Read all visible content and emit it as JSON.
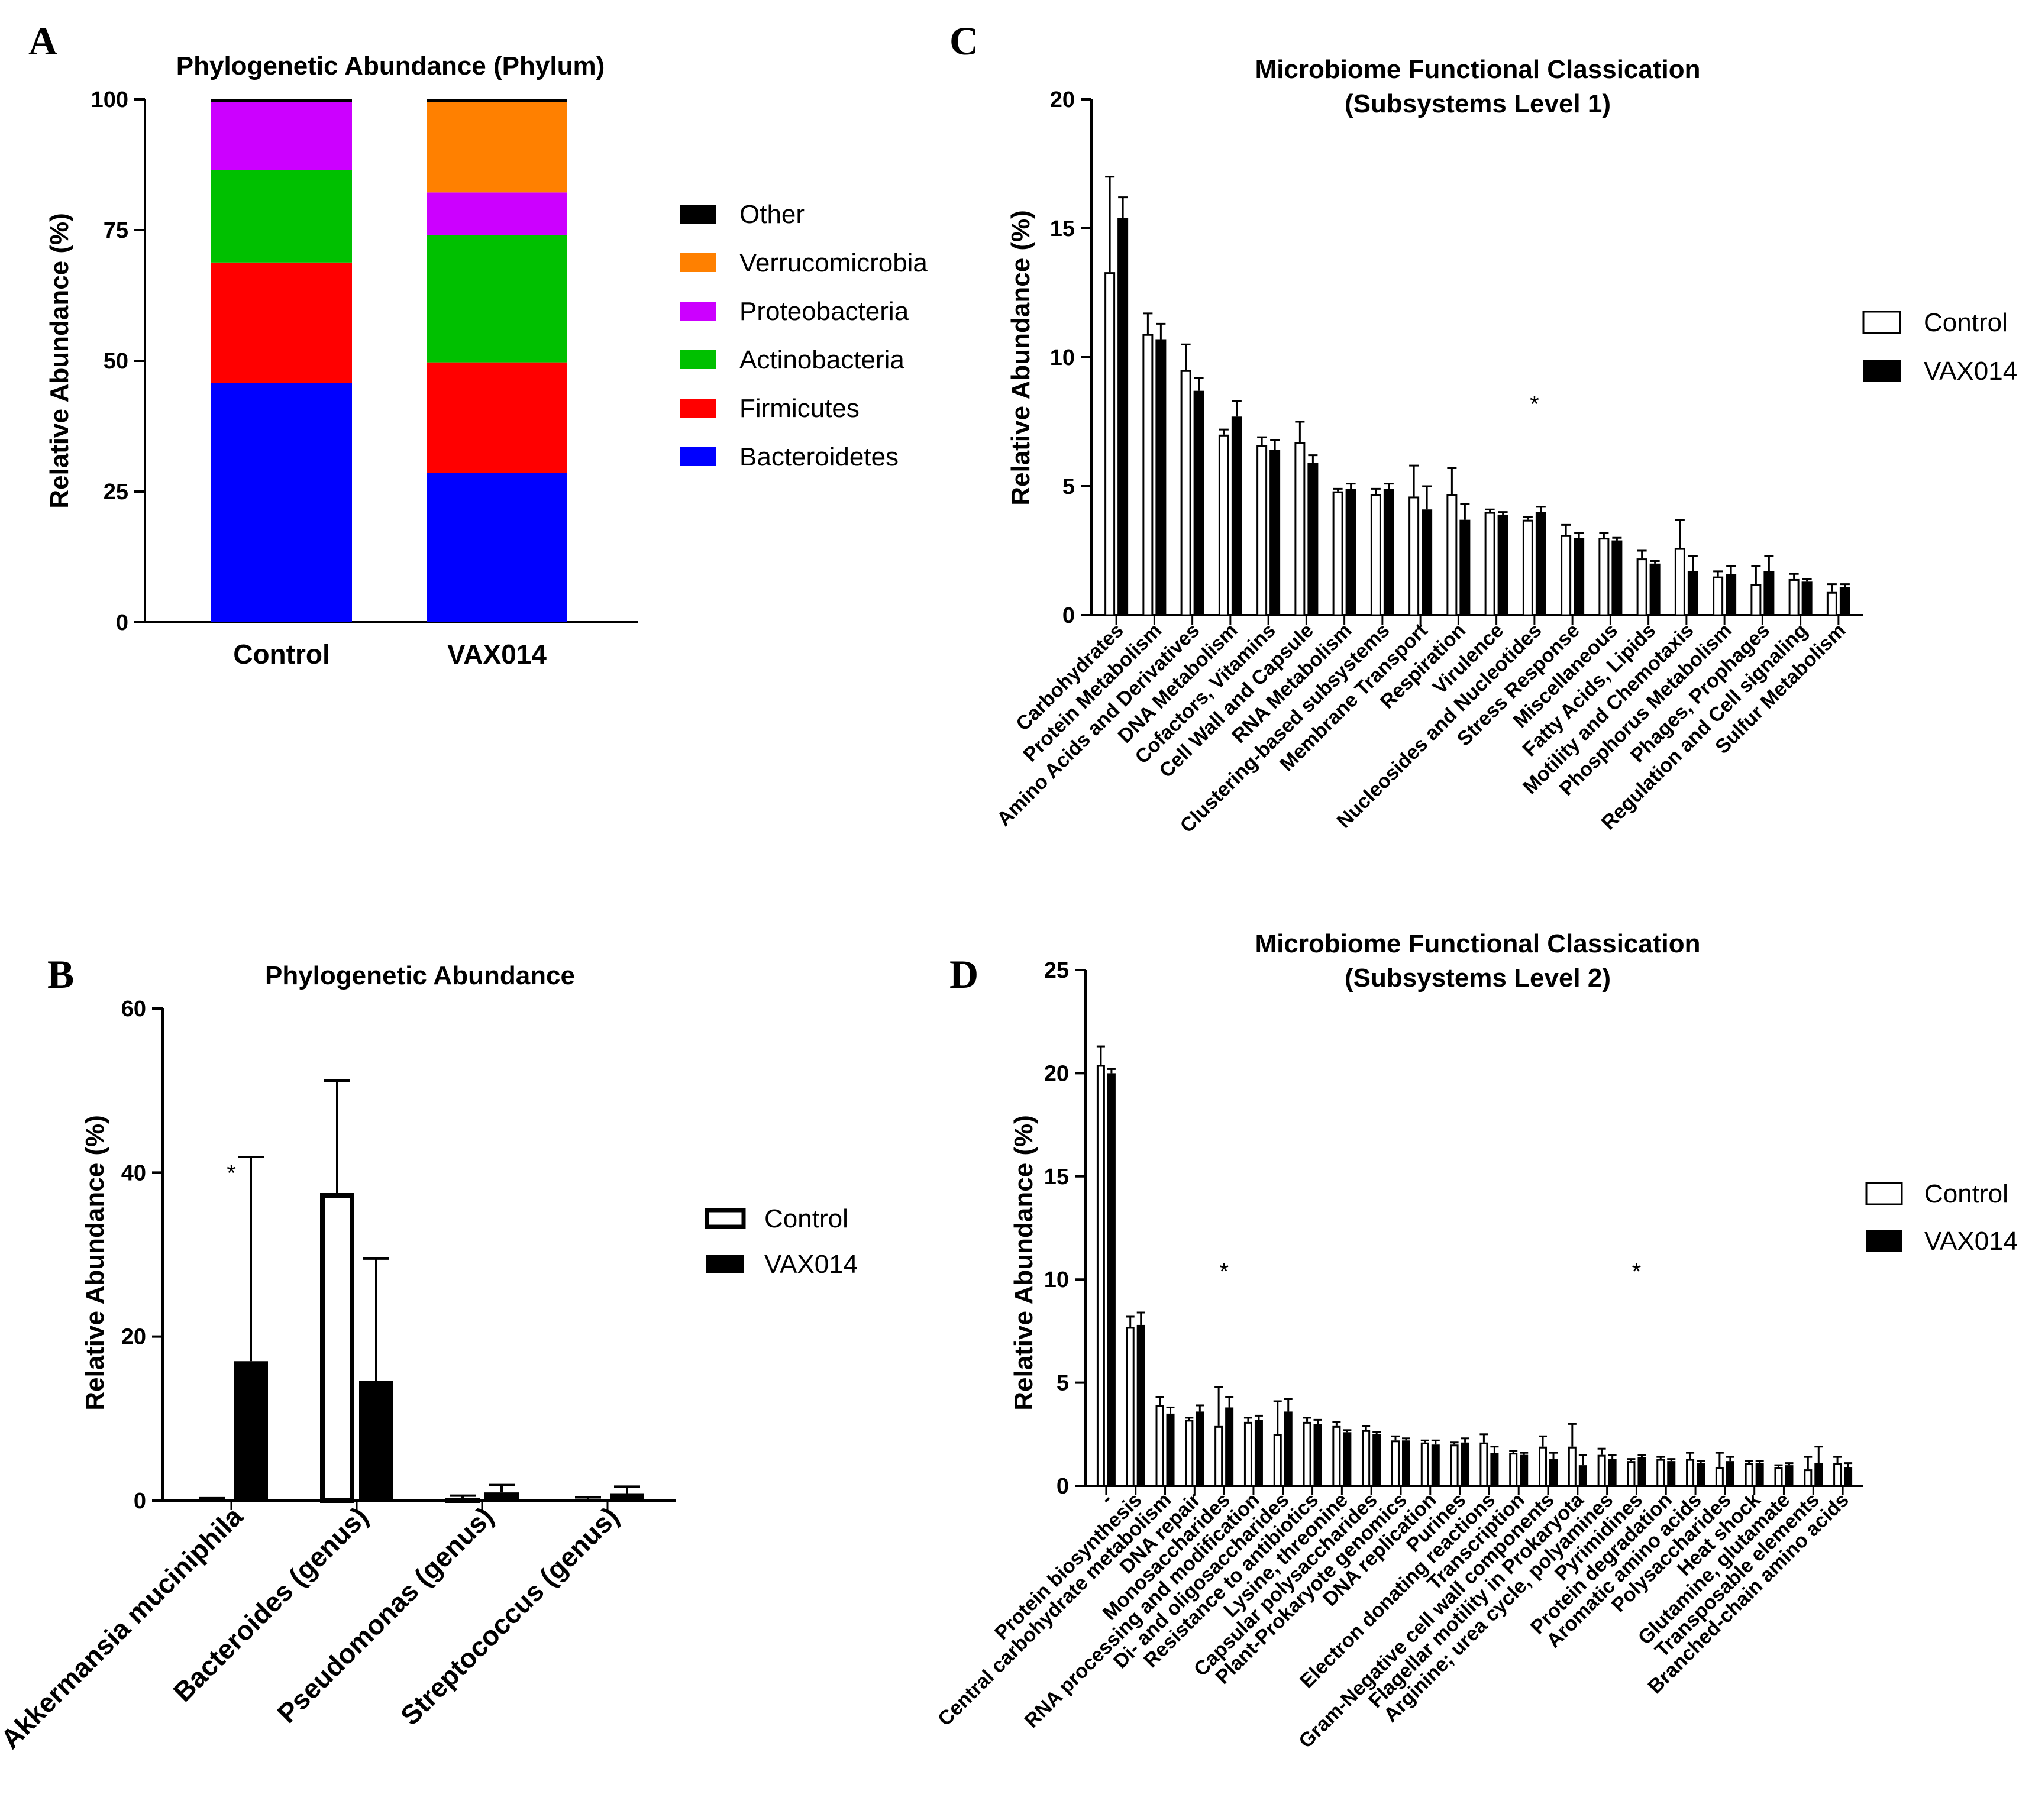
{
  "panels": {
    "A": {
      "letter": "A",
      "chart_data": {
        "type": "bar",
        "stacked": true,
        "title": "Phylogenetic Abundance (Phylum)",
        "ylabel": "Relative Abundance (%)",
        "ylim": [
          0,
          100
        ],
        "yticks": [
          0,
          25,
          50,
          75,
          100
        ],
        "categories": [
          "Control",
          "VAX014"
        ],
        "legend_position": "right",
        "series": [
          {
            "name": "Bacteroidetes",
            "color": "#0000ff",
            "values": [
              45.8,
              28.6
            ]
          },
          {
            "name": "Firmicutes",
            "color": "#ff0000",
            "values": [
              23.0,
              21.1
            ]
          },
          {
            "name": "Actinobacteria",
            "color": "#00c000",
            "values": [
              17.7,
              24.3
            ]
          },
          {
            "name": "Proteobacteria",
            "color": "#cc00ff",
            "values": [
              13.0,
              8.2
            ]
          },
          {
            "name": "Verrucomicrobia",
            "color": "#ff8000",
            "values": [
              0.0,
              17.3
            ]
          },
          {
            "name": "Other",
            "color": "#000000",
            "values": [
              0.5,
              0.5
            ]
          }
        ]
      }
    },
    "B": {
      "letter": "B",
      "chart_data": {
        "type": "bar",
        "title": "Phylogenetic Abundance",
        "ylabel": "Relative Abundance (%)",
        "ylim": [
          0,
          60
        ],
        "yticks": [
          0,
          20,
          40,
          60
        ],
        "categories": [
          "Akkermansia muciniphila",
          "Bacteroides (genus)",
          "Pseudomonas (genus)",
          "Streptococcus (genus)"
        ],
        "legend_position": "right",
        "series": [
          {
            "name": "Control",
            "values": [
              0.2,
              37.5,
              0.3,
              0.2
            ],
            "errors": [
              0.1,
              13.7,
              0.3,
              0.2
            ]
          },
          {
            "name": "VAX014",
            "values": [
              17.0,
              14.6,
              1.0,
              0.9
            ],
            "errors": [
              24.9,
              14.9,
              0.9,
              0.8
            ]
          }
        ],
        "annotations": [
          {
            "category": "Akkermansia muciniphila",
            "text": "*",
            "y": 40
          }
        ]
      }
    },
    "C": {
      "letter": "C",
      "chart_data": {
        "type": "bar",
        "title": "Microbiome Functional Classication",
        "subtitle": "(Subsystems Level 1)",
        "ylabel": "Relative Abundance (%)",
        "ylim": [
          0,
          20
        ],
        "yticks": [
          0,
          5,
          10,
          15,
          20
        ],
        "categories": [
          "Carbohydrates",
          "Protein Metabolism",
          "Amino Acids and Derivatives",
          "DNA Metabolism",
          "Cofactors, Vitamins",
          "Cell Wall and Capsule",
          "RNA Metabolism",
          "Clustering-based subsystems",
          "Membrane Transport",
          "Respiration",
          "Virulence",
          "Nucleosides and Nucleotides",
          "Stress Response",
          "Miscellaneous",
          "Fatty Acids, Lipids",
          "Motility and Chemotaxis",
          "Phosphorus Metabolism",
          "Phages, Prophages",
          "Regulation and Cell signaling",
          "Sulfur Metabolism"
        ],
        "legend_position": "right",
        "series": [
          {
            "name": "Control",
            "values": [
              13.3,
              10.9,
              9.5,
              7.0,
              6.6,
              6.7,
              4.8,
              4.7,
              4.6,
              4.7,
              4.0,
              3.7,
              3.1,
              3.0,
              2.2,
              2.6,
              1.5,
              1.2,
              1.4,
              0.9
            ],
            "errors": [
              3.7,
              0.8,
              1.0,
              0.2,
              0.3,
              0.8,
              0.1,
              0.2,
              1.2,
              1.0,
              0.1,
              0.1,
              0.4,
              0.2,
              0.3,
              1.1,
              0.2,
              0.7,
              0.2,
              0.3
            ]
          },
          {
            "name": "VAX014",
            "values": [
              15.4,
              10.7,
              8.7,
              7.7,
              6.4,
              5.9,
              4.9,
              4.9,
              4.1,
              3.7,
              3.9,
              4.0,
              3.0,
              2.9,
              2.0,
              1.7,
              1.6,
              1.7,
              1.3,
              1.1
            ],
            "errors": [
              0.8,
              0.6,
              0.5,
              0.6,
              0.4,
              0.3,
              0.2,
              0.2,
              0.9,
              0.6,
              0.1,
              0.2,
              0.2,
              0.1,
              0.1,
              0.6,
              0.3,
              0.6,
              0.1,
              0.1
            ]
          }
        ],
        "annotations": [
          {
            "category": "Nucleosides and Nucleotides",
            "text": "*",
            "y": 8.2
          }
        ]
      }
    },
    "D": {
      "letter": "D",
      "chart_data": {
        "type": "bar",
        "title": "Microbiome Functional Classication",
        "subtitle": "(Subsystems Level 2)",
        "ylabel": "Relative Abundance (%)",
        "ylim": [
          0,
          25
        ],
        "yticks": [
          0,
          5,
          10,
          15,
          20,
          25
        ],
        "categories": [
          "-",
          "Protein biosynthesis",
          "Central carbohydrate metabolism",
          "DNA repair",
          "Monosaccharides",
          "RNA processing and modification",
          "Di- and oligosaccharides",
          "Resistance to antibiotics",
          "Lysine, threonine",
          "Capsular polysaccharides",
          "Plant-Prokaryote genomics",
          "DNA replication",
          "Purines",
          "Electron donating reactions",
          "Transcription",
          "Gram-Negative cell wall components",
          "Flagellar motility in Prokaryota",
          "Arginine; urea cycle, polyamines",
          "Pyrimidines",
          "Protein degradation",
          "Aromatic amino acids",
          "Polysaccharides",
          "Heat shock",
          "Glutamine, glutamate",
          "Transposable elements",
          "Branched-chain amino acids"
        ],
        "legend_position": "right",
        "series": [
          {
            "name": "Control",
            "values": [
              20.4,
              7.7,
              3.9,
              3.2,
              2.9,
              3.1,
              2.5,
              3.1,
              2.9,
              2.7,
              2.2,
              2.1,
              2.0,
              2.1,
              1.6,
              1.9,
              1.9,
              1.5,
              1.2,
              1.3,
              1.3,
              0.9,
              1.1,
              0.9,
              0.8,
              1.1
            ],
            "errors": [
              0.9,
              0.5,
              0.4,
              0.1,
              1.9,
              0.2,
              1.6,
              0.2,
              0.2,
              0.2,
              0.2,
              0.1,
              0.1,
              0.4,
              0.1,
              0.5,
              1.1,
              0.3,
              0.1,
              0.1,
              0.3,
              0.7,
              0.1,
              0.1,
              0.6,
              0.3
            ]
          },
          {
            "name": "VAX014",
            "values": [
              20.0,
              7.8,
              3.5,
              3.6,
              3.8,
              3.2,
              3.6,
              3.0,
              2.6,
              2.5,
              2.2,
              2.0,
              2.1,
              1.6,
              1.5,
              1.3,
              1.0,
              1.3,
              1.4,
              1.2,
              1.1,
              1.2,
              1.1,
              1.0,
              1.1,
              0.9
            ],
            "errors": [
              0.2,
              0.6,
              0.3,
              0.3,
              0.5,
              0.2,
              0.6,
              0.2,
              0.1,
              0.1,
              0.1,
              0.2,
              0.2,
              0.3,
              0.1,
              0.3,
              0.5,
              0.2,
              0.1,
              0.1,
              0.1,
              0.2,
              0.1,
              0.1,
              0.8,
              0.2
            ]
          }
        ],
        "annotations": [
          {
            "category": "Monosaccharides",
            "text": "*",
            "y": 10.4
          },
          {
            "category": "Pyrimidines",
            "text": "*",
            "y": 10.4
          }
        ]
      }
    }
  },
  "legend": {
    "control_color": "#ffffff",
    "vax_color": "#000000"
  }
}
